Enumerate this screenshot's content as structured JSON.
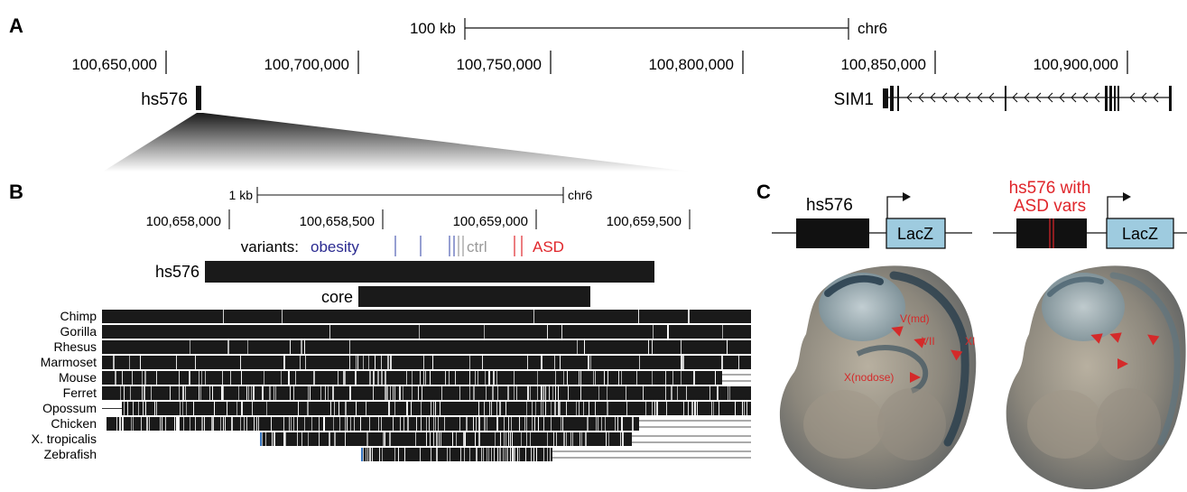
{
  "panels": {
    "a": {
      "label": "A",
      "scale_label": "100 kb",
      "chrom": "chr6",
      "ticks": [
        "100,650,000",
        "100,700,000",
        "100,750,000",
        "100,800,000",
        "100,850,000",
        "100,900,000"
      ],
      "element_label": "hs576",
      "gene_label": "SIM1"
    },
    "b": {
      "label": "B",
      "scale_label": "1 kb",
      "chrom": "chr6",
      "ticks": [
        "100,658,000",
        "100,658,500",
        "100,659,000",
        "100,659,500"
      ],
      "variants_label": "variants:",
      "variant_groups": {
        "obesity": {
          "label": "obesity",
          "color": "#2a2a90"
        },
        "ctrl": {
          "label": "ctrl",
          "color": "#999999"
        },
        "asd": {
          "label": "ASD",
          "color": "#e0262b"
        }
      },
      "element_label": "hs576",
      "core_label": "core",
      "species": [
        "Chimp",
        "Gorilla",
        "Rhesus",
        "Marmoset",
        "Mouse",
        "Ferret",
        "Opossum",
        "Chicken",
        "X. tropicalis",
        "Zebrafish"
      ]
    },
    "c": {
      "label": "C",
      "construct_wt_label": "hs576",
      "construct_asd_label_line1": "hs576 with",
      "construct_asd_label_line2": "ASD vars",
      "reporter_label": "LacZ",
      "embryo_annotations": [
        "V(md)",
        "VII",
        "XI",
        "X(nodose)"
      ],
      "reporter_color": "#9ecbdf",
      "arrow_color": "#d42a2a"
    }
  }
}
